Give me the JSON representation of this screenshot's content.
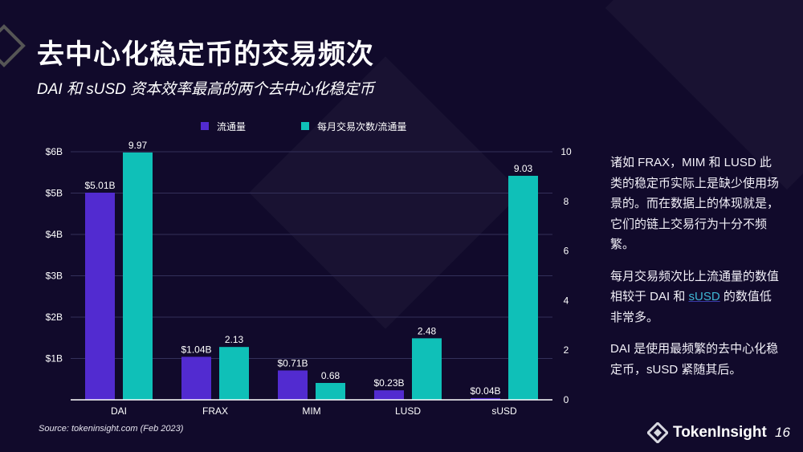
{
  "title": "去中心化稳定币的交易频次",
  "subtitle": "DAI 和 sUSD 资本效率最高的两个去中心化稳定币",
  "source": "Source: tokeninsight.com (Feb 2023)",
  "side_text": {
    "p1": "诸如 FRAX，MIM 和 LUSD 此类的稳定币实际上是缺少使用场景的。而在数据上的体现就是，它们的链上交易行为十分不频繁。",
    "p2_before": "每月交易频次比上流通量的数值相较于 DAI 和 ",
    "p2_link": "sUSD",
    "p2_after": " 的数值低非常多。",
    "p3": "DAI 是使用最频繁的去中心化稳定币，sUSD 紧随其后。"
  },
  "logo": "TokenInsight",
  "page_number": "16",
  "chart_data": {
    "type": "bar",
    "categories": [
      "DAI",
      "FRAX",
      "MIM",
      "LUSD",
      "sUSD"
    ],
    "series": [
      {
        "name": "流通量",
        "axis": "left",
        "color": "#522bd0",
        "values": [
          5.01,
          1.04,
          0.71,
          0.23,
          0.04
        ],
        "labels": [
          "$5.01B",
          "$1.04B",
          "$0.71B",
          "$0.23B",
          "$0.04B"
        ]
      },
      {
        "name": "每月交易次数/流通量",
        "axis": "right",
        "color": "#0fc0b8",
        "values": [
          9.97,
          2.13,
          0.68,
          2.48,
          9.03
        ],
        "labels": [
          "9.97",
          "2.13",
          "0.68",
          "2.48",
          "9.03"
        ]
      }
    ],
    "left_axis": {
      "range": [
        0,
        6
      ],
      "ticks": [
        "$1B",
        "$2B",
        "$3B",
        "$4B",
        "$5B",
        "$6B"
      ],
      "tick_values": [
        1,
        2,
        3,
        4,
        5,
        6
      ]
    },
    "right_axis": {
      "range": [
        0,
        10
      ],
      "ticks": [
        "0",
        "2",
        "4",
        "6",
        "8",
        "10"
      ],
      "tick_values": [
        0,
        2,
        4,
        6,
        8,
        10
      ]
    },
    "grid": true,
    "legend": "top"
  }
}
